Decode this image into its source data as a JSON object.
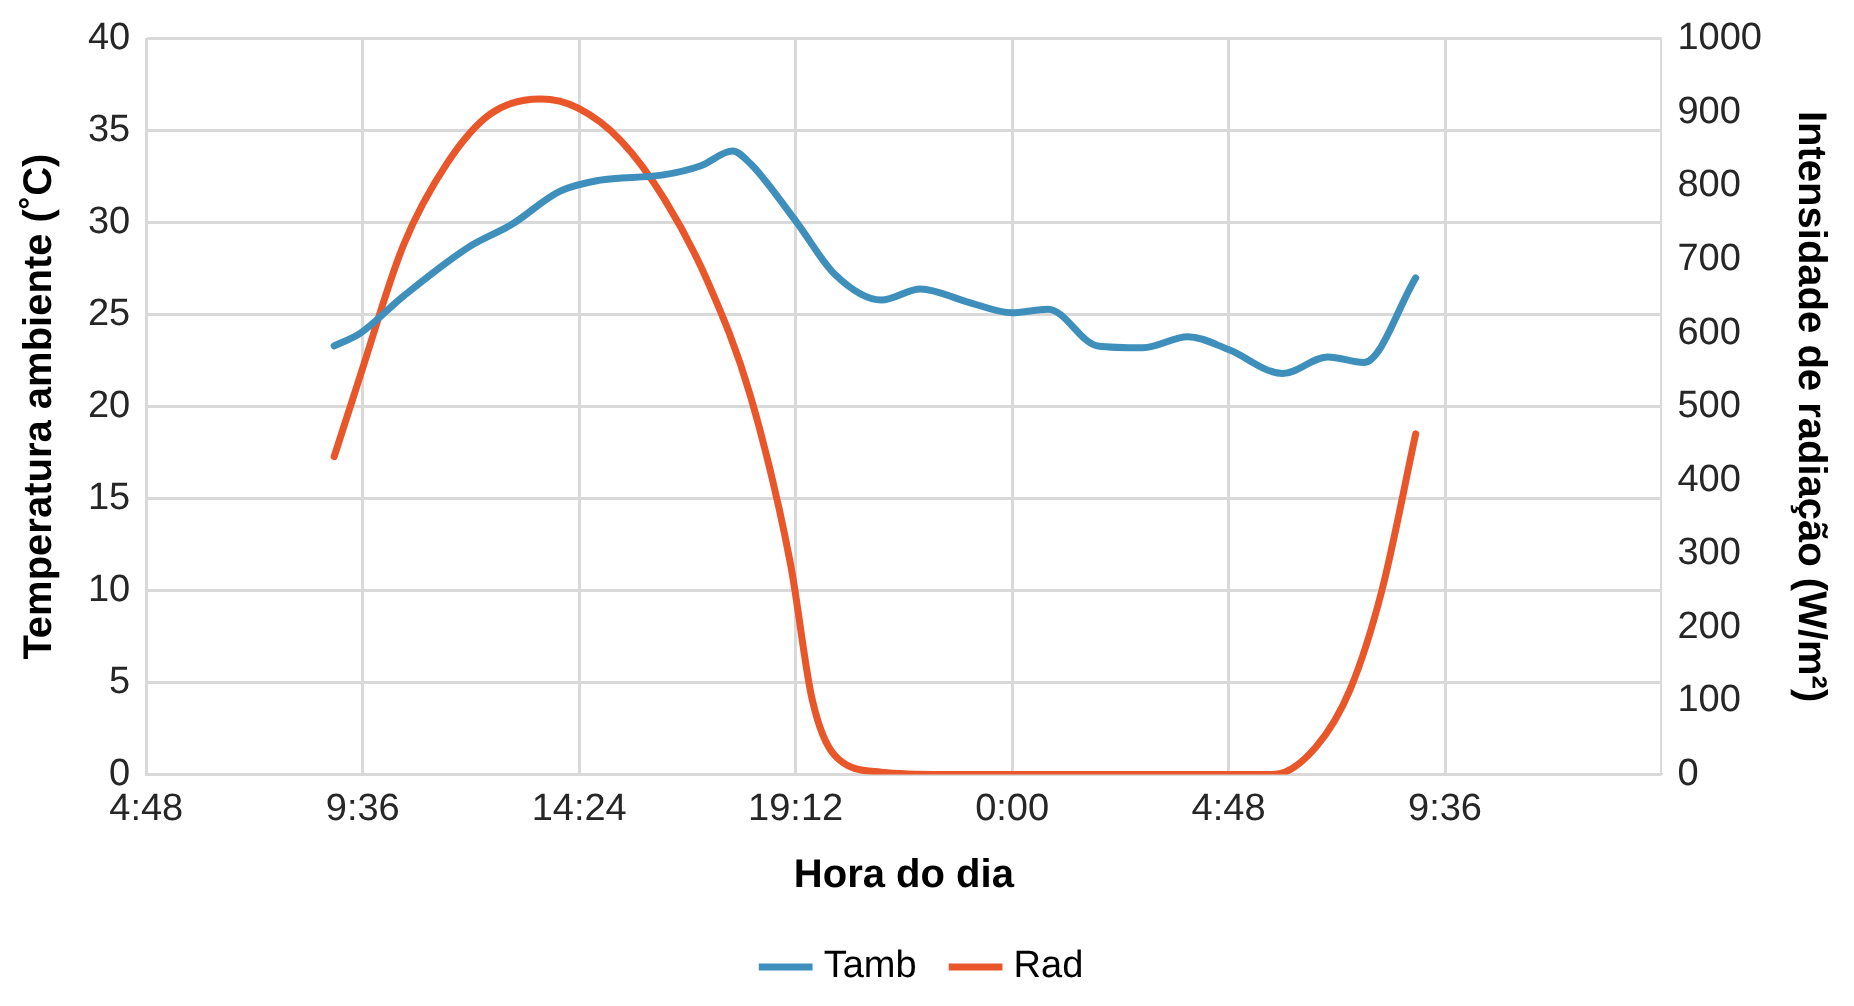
{
  "chart_data": {
    "type": "line",
    "xlabel": "Hora do dia",
    "ylabel": "Temperatura ambiente (˚C)",
    "y2label": "Intensidade de radiação (W/m²)",
    "xlim": [
      "2000-01-01T04:48",
      "2000-01-02T14:24"
    ],
    "xticks": [
      {
        "value": "2000-01-01T04:48",
        "label": "4:48"
      },
      {
        "value": "2000-01-01T09:36",
        "label": "9:36"
      },
      {
        "value": "2000-01-01T14:24",
        "label": "14:24"
      },
      {
        "value": "2000-01-01T19:12",
        "label": "19:12"
      },
      {
        "value": "2000-01-02T00:00",
        "label": "0:00"
      },
      {
        "value": "2000-01-02T04:48",
        "label": "4:48"
      },
      {
        "value": "2000-01-02T09:36",
        "label": "9:36"
      }
    ],
    "ylim": [
      0,
      40
    ],
    "yticks": [
      0,
      5,
      10,
      15,
      20,
      25,
      30,
      35,
      40
    ],
    "y2lim": [
      0,
      1000
    ],
    "y2ticks": [
      0,
      100,
      200,
      300,
      400,
      500,
      600,
      700,
      800,
      900,
      1000
    ],
    "grid": true,
    "legend": "bottom",
    "marker": "none",
    "line_style": "solid",
    "series": [
      {
        "name": "Tamb",
        "color": "#3e8fbc",
        "x": [
          "2000-01-01T08:58",
          "2000-01-01T09:33",
          "2000-01-01T10:30",
          "2000-01-01T11:58",
          "2000-01-01T12:54",
          "2000-01-01T13:58",
          "2000-01-01T14:50",
          "2000-01-01T16:16",
          "2000-01-01T17:06",
          "2000-01-01T17:48",
          "2000-01-01T18:12",
          "2000-01-01T19:12",
          "2000-01-01T20:04",
          "2000-01-01T21:06",
          "2000-01-01T21:58",
          "2000-01-01T23:00",
          "2000-01-02T00:00",
          "2000-01-02T00:48",
          "2000-01-02T01:54",
          "2000-01-02T02:54",
          "2000-01-02T03:54",
          "2000-01-02T04:48",
          "2000-01-02T06:00",
          "2000-01-02T07:00",
          "2000-01-02T07:48",
          "2000-01-02T08:57"
        ],
        "values": [
          23.3,
          24.0,
          26.0,
          28.7,
          29.9,
          31.7,
          32.3,
          32.6,
          33.1,
          33.9,
          33.2,
          30.1,
          27.2,
          25.8,
          26.4,
          25.7,
          25.1,
          25.3,
          23.3,
          23.2,
          23.8,
          23.1,
          21.8,
          22.7,
          22.4,
          27.0
        ]
      },
      {
        "name": "Rad",
        "color": "#e8562a",
        "axis": "y2",
        "x": [
          "2000-01-01T08:58",
          "2000-01-01T09:33",
          "2000-01-01T10:30",
          "2000-01-01T11:29",
          "2000-01-01T12:26",
          "2000-01-01T13:33",
          "2000-01-01T14:22",
          "2000-01-01T15:20",
          "2000-01-01T16:18",
          "2000-01-01T17:15",
          "2000-01-01T18:12",
          "2000-01-01T19:05",
          "2000-01-01T19:34",
          "2000-01-01T20:04",
          "2000-01-01T21:06",
          "2000-01-01T22:30",
          "2000-01-02T00:00",
          "2000-01-02T02:00",
          "2000-01-02T04:00",
          "2000-01-02T05:48",
          "2000-01-02T06:44",
          "2000-01-02T07:30",
          "2000-01-02T08:12",
          "2000-01-02T08:57"
        ],
        "values": [
          432,
          543,
          719,
          832,
          898,
          918,
          906,
          861,
          781,
          670,
          514,
          287,
          102,
          26,
          3,
          0,
          0,
          0,
          0,
          0,
          37,
          116,
          250,
          463
        ]
      }
    ]
  }
}
